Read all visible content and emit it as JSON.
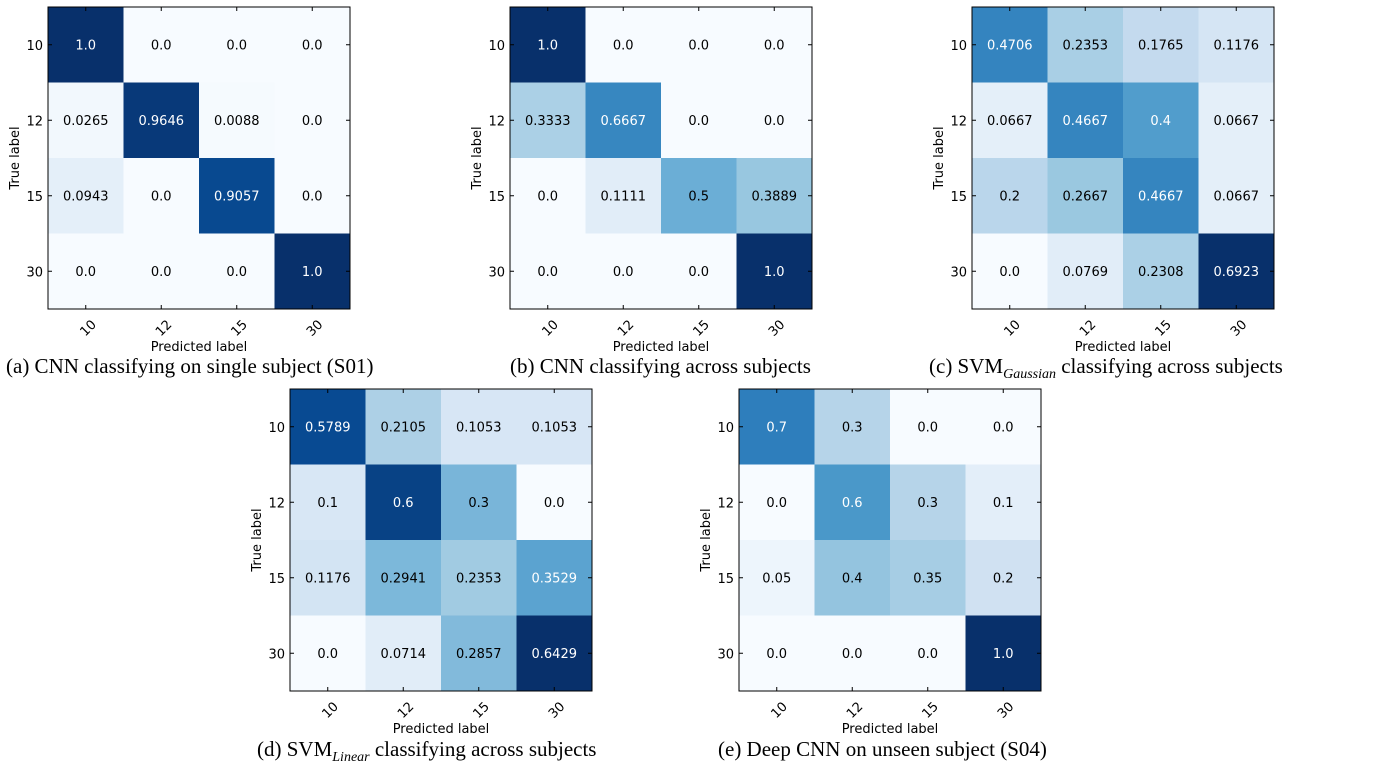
{
  "chart_data": [
    {
      "type": "heatmap",
      "caption": "(a) CNN classifying on single subject (S01)",
      "xlabel": "Predicted label",
      "ylabel": "True label",
      "x_categories": [
        "10",
        "12",
        "15",
        "30"
      ],
      "y_categories": [
        "10",
        "12",
        "15",
        "30"
      ],
      "values": [
        [
          1.0,
          0.0,
          0.0,
          0.0
        ],
        [
          0.0265,
          0.9646,
          0.0088,
          0.0
        ],
        [
          0.0943,
          0.0,
          0.9057,
          0.0
        ],
        [
          0.0,
          0.0,
          0.0,
          1.0
        ]
      ],
      "cell_labels": [
        [
          "1.0",
          "0.0",
          "0.0",
          "0.0"
        ],
        [
          "0.0265",
          "0.9646",
          "0.0088",
          "0.0"
        ],
        [
          "0.0943",
          "0.0",
          "0.9057",
          "0.0"
        ],
        [
          "0.0",
          "0.0",
          "0.0",
          "1.0"
        ]
      ],
      "colormap": "Blues"
    },
    {
      "type": "heatmap",
      "caption": "(b) CNN classifying across subjects",
      "xlabel": "Predicted label",
      "ylabel": "True label",
      "x_categories": [
        "10",
        "12",
        "15",
        "30"
      ],
      "y_categories": [
        "10",
        "12",
        "15",
        "30"
      ],
      "values": [
        [
          1.0,
          0.0,
          0.0,
          0.0
        ],
        [
          0.3333,
          0.6667,
          0.0,
          0.0
        ],
        [
          0.0,
          0.1111,
          0.5,
          0.3889
        ],
        [
          0.0,
          0.0,
          0.0,
          1.0
        ]
      ],
      "cell_labels": [
        [
          "1.0",
          "0.0",
          "0.0",
          "0.0"
        ],
        [
          "0.3333",
          "0.6667",
          "0.0",
          "0.0"
        ],
        [
          "0.0",
          "0.1111",
          "0.5",
          "0.3889"
        ],
        [
          "0.0",
          "0.0",
          "0.0",
          "1.0"
        ]
      ],
      "colormap": "Blues"
    },
    {
      "type": "heatmap",
      "caption": "(c) SVM",
      "caption_subscript": "Gaussian",
      "caption_suffix": " classifying across subjects",
      "xlabel": "Predicted label",
      "ylabel": "True label",
      "x_categories": [
        "10",
        "12",
        "15",
        "30"
      ],
      "y_categories": [
        "10",
        "12",
        "15",
        "30"
      ],
      "values": [
        [
          0.4706,
          0.2353,
          0.1765,
          0.1176
        ],
        [
          0.0667,
          0.4667,
          0.4,
          0.0667
        ],
        [
          0.2,
          0.2667,
          0.4667,
          0.0667
        ],
        [
          0.0,
          0.0769,
          0.2308,
          0.6923
        ]
      ],
      "cell_labels": [
        [
          "0.4706",
          "0.2353",
          "0.1765",
          "0.1176"
        ],
        [
          "0.0667",
          "0.4667",
          "0.4",
          "0.0667"
        ],
        [
          "0.2",
          "0.2667",
          "0.4667",
          "0.0667"
        ],
        [
          "0.0",
          "0.0769",
          "0.2308",
          "0.6923"
        ]
      ],
      "colormap": "Blues"
    },
    {
      "type": "heatmap",
      "caption": "(d) SVM",
      "caption_subscript": "Linear",
      "caption_suffix": " classifying across subjects",
      "xlabel": "Predicted label",
      "ylabel": "True label",
      "x_categories": [
        "10",
        "12",
        "15",
        "30"
      ],
      "y_categories": [
        "10",
        "12",
        "15",
        "30"
      ],
      "values": [
        [
          0.5789,
          0.2105,
          0.1053,
          0.1053
        ],
        [
          0.1,
          0.6,
          0.3,
          0.0
        ],
        [
          0.1176,
          0.2941,
          0.2353,
          0.3529
        ],
        [
          0.0,
          0.0714,
          0.2857,
          0.6429
        ]
      ],
      "cell_labels": [
        [
          "0.5789",
          "0.2105",
          "0.1053",
          "0.1053"
        ],
        [
          "0.1",
          "0.6",
          "0.3",
          "0.0"
        ],
        [
          "0.1176",
          "0.2941",
          "0.2353",
          "0.3529"
        ],
        [
          "0.0",
          "0.0714",
          "0.2857",
          "0.6429"
        ]
      ],
      "colormap": "Blues"
    },
    {
      "type": "heatmap",
      "caption": "(e) Deep CNN on unseen subject (S04)",
      "xlabel": "Predicted label",
      "ylabel": "True label",
      "x_categories": [
        "10",
        "12",
        "15",
        "30"
      ],
      "y_categories": [
        "10",
        "12",
        "15",
        "30"
      ],
      "values": [
        [
          0.7,
          0.3,
          0.0,
          0.0
        ],
        [
          0.0,
          0.6,
          0.3,
          0.1
        ],
        [
          0.05,
          0.4,
          0.35,
          0.2
        ],
        [
          0.0,
          0.0,
          0.0,
          1.0
        ]
      ],
      "cell_labels": [
        [
          "0.7",
          "0.3",
          "0.0",
          "0.0"
        ],
        [
          "0.0",
          "0.6",
          "0.3",
          "0.1"
        ],
        [
          "0.05",
          "0.4",
          "0.35",
          "0.2"
        ],
        [
          "0.0",
          "0.0",
          "0.0",
          "1.0"
        ]
      ],
      "colormap": "Blues"
    }
  ]
}
